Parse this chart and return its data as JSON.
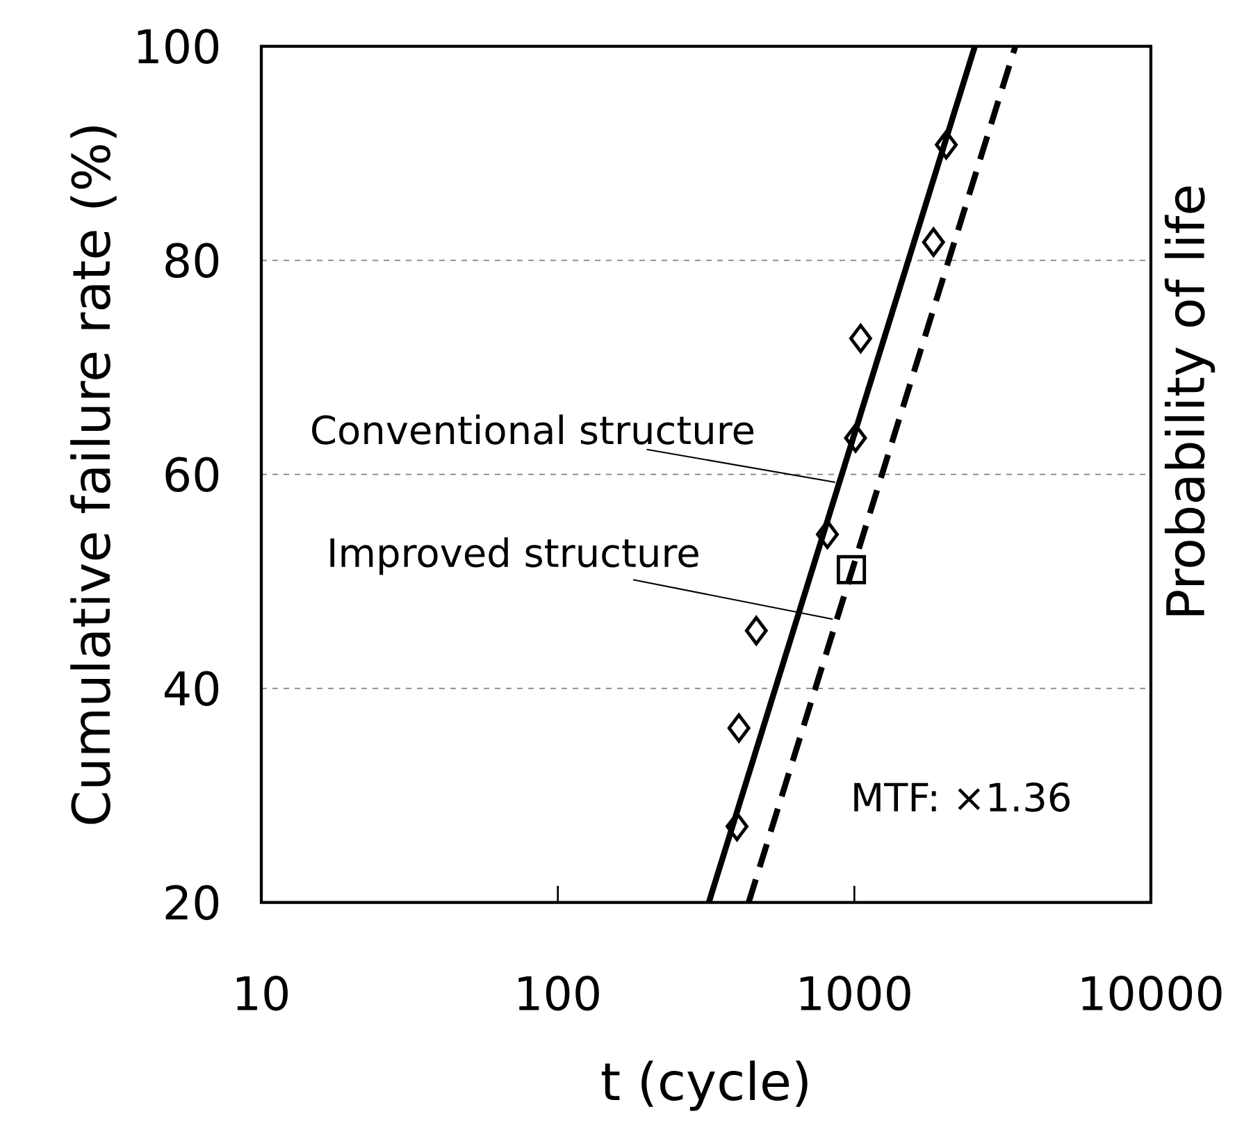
{
  "chart_data": {
    "type": "scatter",
    "xlabel": "t (cycle)",
    "ylabel": "Cumulative failure rate (%)",
    "y2label": "Probability of life",
    "log": "x",
    "xlim": [
      10,
      10000
    ],
    "xticks": [
      10,
      100,
      1000,
      10000
    ],
    "ylim": [
      20,
      100
    ],
    "yticks": [
      20,
      40,
      60,
      80,
      100
    ],
    "grid": "y",
    "annotations": [
      "MTF: ×1.36"
    ],
    "series": [
      {
        "marker": "diamond",
        "color": "#000000",
        "x": [
          402,
          408,
          467,
          811,
          1009,
          1050,
          1849,
          2042
        ],
        "values": [
          27.1,
          36.3,
          45.4,
          54.4,
          63.4,
          72.7,
          81.7,
          90.8
        ]
      },
      {
        "marker": "square",
        "color": "#000000",
        "x": [
          977
        ],
        "values": [
          51.1
        ]
      },
      {
        "type": "line",
        "name": "Conventional structure",
        "line_style": "solid",
        "color": "#000000",
        "x": [
          323,
          2549
        ],
        "values": [
          20,
          100
        ]
      },
      {
        "type": "line",
        "name": "Improved structure",
        "line_style": "dashed",
        "color": "#000000",
        "x": [
          440,
          3491
        ],
        "values": [
          20,
          100
        ]
      }
    ]
  }
}
